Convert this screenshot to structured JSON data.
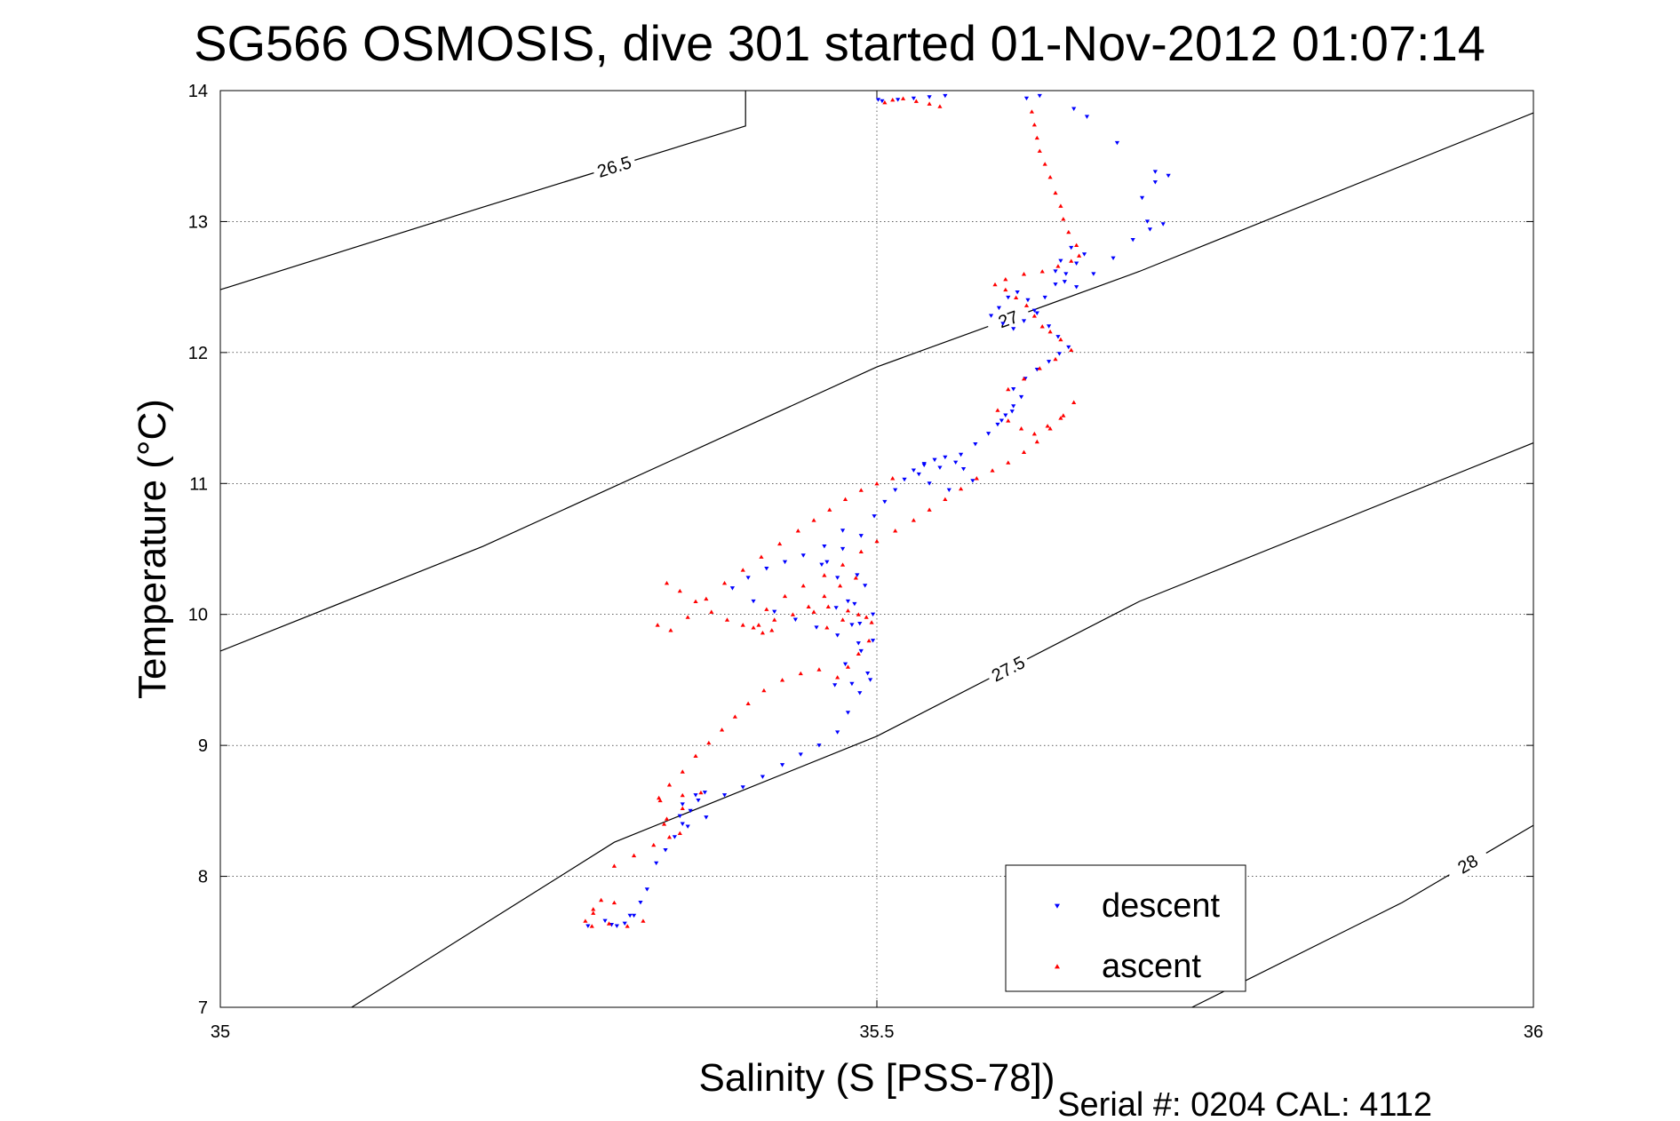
{
  "chart_data": {
    "type": "scatter",
    "title": "SG566 OSMOSIS, dive 301 started 01-Nov-2012 01:07:14",
    "xlabel": "Salinity (S [PSS-78])",
    "ylabel": "Temperature (°C)",
    "xlim": [
      35,
      36
    ],
    "ylim": [
      7,
      14
    ],
    "xticks": [
      35,
      35.5,
      36
    ],
    "yticks": [
      7,
      8,
      9,
      10,
      11,
      12,
      13,
      14
    ],
    "xtick_labels": [
      "35",
      "35.5",
      "36"
    ],
    "ytick_labels": [
      "7",
      "8",
      "9",
      "10",
      "11",
      "12",
      "13",
      "14"
    ],
    "grid": true,
    "legend_position": "bottom-right",
    "footer": "Serial #: 0204  CAL: 4112",
    "density_contours": [
      {
        "label": "26.5",
        "points": [
          [
            35.0,
            12.48
          ],
          [
            35.2,
            13.11
          ],
          [
            35.4,
            13.73
          ],
          [
            35.4,
            14.0
          ]
        ]
      },
      {
        "label": "27",
        "points": [
          [
            35.0,
            9.72
          ],
          [
            35.2,
            10.52
          ],
          [
            35.5,
            11.89
          ],
          [
            35.7,
            12.62
          ],
          [
            36.0,
            13.83
          ]
        ]
      },
      {
        "label": "27.5",
        "points": [
          [
            35.1,
            7.0
          ],
          [
            35.3,
            8.26
          ],
          [
            35.5,
            9.07
          ],
          [
            35.7,
            10.1
          ],
          [
            36.0,
            11.31
          ]
        ]
      },
      {
        "label": "28",
        "points": [
          [
            35.74,
            7.0
          ],
          [
            35.9,
            7.8
          ],
          [
            36.0,
            8.39
          ]
        ]
      }
    ],
    "series": [
      {
        "name": "descent",
        "color": "#0000ff",
        "marker": "triangle-down",
        "x": [
          35.302,
          35.308,
          35.315,
          35.32,
          35.293,
          35.28,
          35.298,
          35.312,
          35.325,
          35.332,
          35.339,
          35.346,
          35.352,
          35.358,
          35.364,
          35.369,
          35.362,
          35.352,
          35.35,
          35.356,
          35.37,
          35.384,
          35.398,
          35.413,
          35.428,
          35.442,
          35.456,
          35.47,
          35.478,
          35.487,
          35.495,
          35.493,
          35.481,
          35.468,
          35.476,
          35.488,
          35.497,
          35.481,
          35.469,
          35.483,
          35.497,
          35.487,
          35.478,
          35.491,
          35.485,
          35.47,
          35.462,
          35.458,
          35.474,
          35.488,
          35.474,
          35.46,
          35.444,
          35.43,
          35.416,
          35.402,
          35.39,
          35.406,
          35.422,
          35.438,
          35.454,
          35.47,
          35.486,
          35.498,
          35.506,
          35.514,
          35.521,
          35.528,
          35.536,
          35.544,
          35.552,
          35.56,
          35.566,
          35.573,
          35.548,
          35.536,
          35.532,
          35.54,
          35.555,
          35.564,
          35.575,
          35.585,
          35.592,
          35.598,
          35.604,
          35.61,
          35.603,
          35.595,
          35.604,
          35.613,
          35.622,
          35.631,
          35.639,
          35.646,
          35.638,
          35.631,
          35.622,
          35.615,
          35.607,
          35.6,
          35.593,
          35.587,
          35.596,
          35.604,
          35.612,
          35.62,
          35.628,
          35.636,
          35.644,
          35.652,
          35.658,
          35.648,
          35.64,
          35.636,
          35.643,
          35.652,
          35.665,
          35.68,
          35.695,
          35.708,
          35.718,
          35.706,
          35.702,
          35.712,
          35.722,
          35.712,
          35.683,
          35.66,
          35.65,
          35.624,
          35.614,
          35.552,
          35.54,
          35.528,
          35.516,
          35.504,
          35.501
        ],
        "y": [
          7.62,
          7.64,
          7.7,
          7.8,
          7.66,
          7.62,
          7.63,
          7.7,
          7.9,
          8.1,
          8.2,
          8.3,
          8.4,
          8.5,
          8.58,
          8.64,
          8.62,
          8.55,
          8.46,
          8.38,
          8.45,
          8.62,
          8.68,
          8.76,
          8.85,
          8.93,
          9.0,
          9.1,
          9.25,
          9.4,
          9.5,
          9.55,
          9.47,
          9.46,
          9.62,
          9.72,
          9.8,
          9.92,
          10.05,
          10.08,
          10.0,
          9.93,
          10.1,
          10.22,
          10.3,
          10.28,
          10.4,
          10.38,
          10.5,
          10.6,
          10.64,
          10.52,
          10.45,
          10.4,
          10.35,
          10.28,
          10.2,
          10.1,
          10.02,
          9.96,
          9.9,
          9.84,
          9.78,
          10.75,
          10.86,
          10.95,
          11.03,
          11.1,
          11.15,
          11.18,
          11.2,
          11.16,
          11.11,
          11.02,
          11.12,
          11.14,
          11.07,
          11.0,
          10.95,
          11.22,
          11.3,
          11.38,
          11.45,
          11.52,
          11.59,
          11.66,
          11.55,
          11.48,
          11.72,
          11.8,
          11.87,
          11.93,
          11.99,
          12.04,
          12.12,
          12.2,
          12.3,
          12.4,
          12.46,
          12.42,
          12.34,
          12.28,
          12.22,
          12.18,
          12.24,
          12.32,
          12.42,
          12.52,
          12.6,
          12.68,
          12.75,
          12.8,
          12.7,
          12.62,
          12.54,
          12.5,
          12.6,
          12.72,
          12.86,
          12.94,
          12.98,
          13.0,
          13.18,
          13.3,
          13.35,
          13.38,
          13.6,
          13.8,
          13.86,
          13.96,
          13.94,
          13.96,
          13.95,
          13.94,
          13.93,
          13.92,
          13.93
        ]
      },
      {
        "name": "ascent",
        "color": "#ff0000",
        "marker": "triangle-up",
        "x": [
          35.283,
          35.278,
          35.284,
          35.296,
          35.31,
          35.322,
          35.3,
          35.29,
          35.284,
          35.3,
          35.315,
          35.33,
          35.342,
          35.35,
          35.338,
          35.335,
          35.352,
          35.366,
          35.352,
          35.34,
          35.334,
          35.342,
          35.352,
          35.362,
          35.372,
          35.382,
          35.392,
          35.402,
          35.414,
          35.428,
          35.442,
          35.456,
          35.47,
          35.478,
          35.486,
          35.494,
          35.496,
          35.486,
          35.474,
          35.462,
          35.452,
          35.463,
          35.478,
          35.492,
          35.484,
          35.472,
          35.46,
          35.448,
          35.436,
          35.422,
          35.41,
          35.398,
          35.386,
          35.374,
          35.362,
          35.35,
          35.34,
          35.333,
          35.343,
          35.356,
          35.37,
          35.384,
          35.398,
          35.412,
          35.426,
          35.44,
          35.452,
          35.464,
          35.476,
          35.488,
          35.5,
          35.512,
          35.42,
          35.413,
          35.406,
          35.416,
          35.43,
          35.444,
          35.46,
          35.474,
          35.488,
          35.5,
          35.514,
          35.528,
          35.54,
          35.552,
          35.564,
          35.576,
          35.588,
          35.6,
          35.612,
          35.622,
          35.632,
          35.642,
          35.65,
          35.64,
          35.63,
          35.62,
          35.61,
          35.6,
          35.592,
          35.6,
          35.612,
          35.624,
          35.636,
          35.648,
          35.64,
          35.632,
          35.626,
          35.62,
          35.614,
          35.606,
          35.598,
          35.59,
          35.598,
          35.612,
          35.626,
          35.638,
          35.648,
          35.654,
          35.652,
          35.646,
          35.642,
          35.64,
          35.636,
          35.632,
          35.628,
          35.624,
          35.622,
          35.62,
          35.618,
          35.548,
          35.54,
          35.53,
          35.52,
          35.512,
          35.506
        ],
        "y": [
          7.62,
          7.66,
          7.72,
          7.64,
          7.62,
          7.66,
          7.8,
          7.82,
          7.75,
          8.08,
          8.16,
          8.24,
          8.3,
          8.33,
          8.4,
          8.58,
          8.62,
          8.64,
          8.52,
          8.44,
          8.6,
          8.7,
          8.8,
          8.92,
          9.02,
          9.12,
          9.22,
          9.32,
          9.42,
          9.5,
          9.55,
          9.58,
          9.52,
          9.6,
          9.7,
          9.8,
          9.94,
          10.0,
          9.96,
          9.9,
          10.02,
          10.06,
          10.03,
          9.98,
          10.28,
          10.22,
          10.14,
          10.06,
          10.0,
          9.96,
          9.92,
          9.92,
          9.96,
          10.02,
          10.1,
          10.18,
          10.24,
          9.92,
          9.88,
          9.98,
          10.12,
          10.24,
          10.34,
          10.44,
          10.54,
          10.64,
          10.72,
          10.8,
          10.88,
          10.95,
          11.0,
          11.04,
          9.88,
          9.86,
          9.9,
          10.04,
          10.14,
          10.22,
          10.3,
          10.38,
          10.48,
          10.56,
          10.64,
          10.72,
          10.8,
          10.88,
          10.96,
          11.04,
          11.1,
          11.16,
          11.24,
          11.32,
          11.42,
          11.52,
          11.62,
          11.5,
          11.44,
          11.38,
          11.42,
          11.48,
          11.56,
          11.72,
          11.8,
          11.88,
          11.95,
          12.02,
          12.1,
          12.16,
          12.2,
          12.28,
          12.36,
          12.42,
          12.48,
          12.52,
          12.56,
          12.6,
          12.62,
          12.66,
          12.7,
          12.74,
          12.82,
          12.92,
          13.02,
          13.12,
          13.22,
          13.34,
          13.44,
          13.54,
          13.64,
          13.74,
          13.84,
          13.88,
          13.9,
          13.92,
          13.94,
          13.93,
          13.91
        ]
      }
    ]
  }
}
